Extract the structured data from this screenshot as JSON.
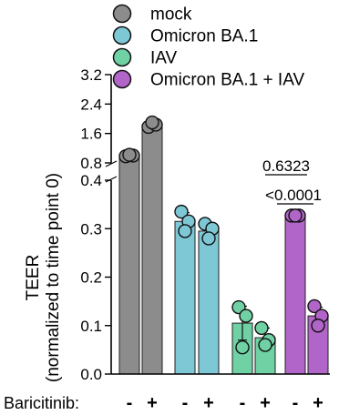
{
  "chart_data": {
    "type": "bar",
    "ylabel_lines": [
      "TEER",
      "(normalized to time point 0)"
    ],
    "x_row_label": "Baricitinib:",
    "legend": [
      {
        "label": "mock",
        "color": "#8c8c8c"
      },
      {
        "label": "Omicron BA.1",
        "color": "#7ec8d6"
      },
      {
        "label": "IAV",
        "color": "#6fd1a4"
      },
      {
        "label": "Omicron BA.1 + IAV",
        "color": "#b265c8"
      }
    ],
    "upper_axis": {
      "ylim": [
        0.8,
        3.2
      ],
      "ticks": [
        "0.8",
        "1.6",
        "2.4",
        "3.2"
      ]
    },
    "lower_axis": {
      "ylim": [
        0.0,
        0.4
      ],
      "ticks": [
        "0.0",
        "0.1",
        "0.2",
        "0.3",
        "0.4"
      ]
    },
    "categories": [
      "-",
      "+",
      "-",
      "+",
      "-",
      "+",
      "-",
      "+"
    ],
    "bars": [
      {
        "group": "mock",
        "baricitinib": "-",
        "value": 1.0,
        "error": 0.02,
        "points": [
          0.98,
          1.0,
          1.02
        ]
      },
      {
        "group": "mock",
        "baricitinib": "+",
        "value": 1.84,
        "error": 0.05,
        "points": [
          1.78,
          1.84,
          1.9
        ]
      },
      {
        "group": "Omicron BA.1",
        "baricitinib": "-",
        "value": 0.315,
        "error": 0.018,
        "points": [
          0.335,
          0.315,
          0.295
        ]
      },
      {
        "group": "Omicron BA.1",
        "baricitinib": "+",
        "value": 0.295,
        "error": 0.015,
        "points": [
          0.31,
          0.3,
          0.28
        ]
      },
      {
        "group": "IAV",
        "baricitinib": "-",
        "value": 0.105,
        "error": 0.035,
        "points": [
          0.138,
          0.12,
          0.055
        ]
      },
      {
        "group": "IAV",
        "baricitinib": "+",
        "value": 0.075,
        "error": 0.02,
        "points": [
          0.095,
          0.07,
          0.06
        ]
      },
      {
        "group": "Omicron BA.1 + IAV",
        "baricitinib": "-",
        "value": 0.327,
        "error": 0.003,
        "points": [
          0.327,
          0.327,
          0.327
        ]
      },
      {
        "group": "Omicron BA.1 + IAV",
        "baricitinib": "+",
        "value": 0.12,
        "error": 0.018,
        "points": [
          0.14,
          0.12,
          0.1
        ]
      }
    ],
    "annotations": [
      {
        "text": "0.6323",
        "underline": true
      },
      {
        "text_prefix": "<",
        "text_underlined": "0.000",
        "text_suffix": "1"
      }
    ]
  }
}
